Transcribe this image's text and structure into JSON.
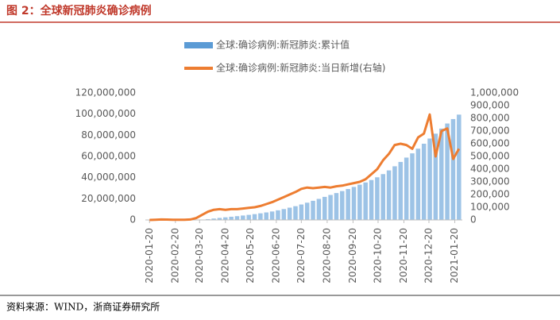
{
  "chart_data": {
    "type": "bar_line",
    "title": "图 2：全球新冠肺炎确诊病例",
    "source": "资料来源：WIND，浙商证券研究所",
    "x": [
      "2020-01-20",
      "2020-01-27",
      "2020-02-03",
      "2020-02-10",
      "2020-02-17",
      "2020-02-24",
      "2020-03-02",
      "2020-03-09",
      "2020-03-16",
      "2020-03-23",
      "2020-03-30",
      "2020-04-06",
      "2020-04-13",
      "2020-04-20",
      "2020-04-27",
      "2020-05-04",
      "2020-05-11",
      "2020-05-18",
      "2020-05-25",
      "2020-06-01",
      "2020-06-08",
      "2020-06-15",
      "2020-06-22",
      "2020-06-29",
      "2020-07-06",
      "2020-07-13",
      "2020-07-20",
      "2020-07-27",
      "2020-08-03",
      "2020-08-10",
      "2020-08-17",
      "2020-08-24",
      "2020-08-31",
      "2020-09-07",
      "2020-09-14",
      "2020-09-21",
      "2020-09-28",
      "2020-10-05",
      "2020-10-12",
      "2020-10-19",
      "2020-10-26",
      "2020-11-02",
      "2020-11-09",
      "2020-11-16",
      "2020-11-23",
      "2020-11-30",
      "2020-12-07",
      "2020-12-14",
      "2020-12-21",
      "2020-12-28",
      "2021-01-04",
      "2021-01-11",
      "2021-01-18",
      "2021-01-25"
    ],
    "xlim": [
      "2020-01-15",
      "2021-01-29"
    ],
    "xticks": [
      "2020-01-20",
      "2020-02-20",
      "2020-03-20",
      "2020-04-20",
      "2020-05-20",
      "2020-06-20",
      "2020-07-20",
      "2020-08-20",
      "2020-09-20",
      "2020-10-20",
      "2020-11-20",
      "2020-12-20",
      "2021-01-20"
    ],
    "series": [
      {
        "name": "全球:确诊病例:新冠肺炎:累计值",
        "color": "#9dc3e6",
        "legend_color": "#5b9bd5",
        "kind": "bar",
        "axis": "y",
        "values": [
          300,
          2900,
          17000,
          43000,
          73000,
          80000,
          90000,
          110000,
          180000,
          380000,
          780000,
          1350000,
          1920000,
          2480000,
          3040000,
          3580000,
          4180000,
          4800000,
          5500000,
          6270000,
          7100000,
          8000000,
          9100000,
          10300000,
          11600000,
          13000000,
          14600000,
          16300000,
          18100000,
          19900000,
          21800000,
          23600000,
          25400000,
          27300000,
          29200000,
          31200000,
          33300000,
          35400000,
          37700000,
          40300000,
          43300000,
          46800000,
          50700000,
          54800000,
          58900000,
          62900000,
          67300000,
          72000000,
          76900000,
          81500000,
          86300000,
          91100000,
          95300000,
          99500000
        ]
      },
      {
        "name": "全球:确诊病例:新冠肺炎:当日新增(右轴)",
        "color": "#ed7d31",
        "kind": "line",
        "axis": "y2",
        "values": [
          100,
          2000,
          3500,
          3000,
          2000,
          1500,
          2000,
          4000,
          15000,
          40000,
          65000,
          80000,
          85000,
          80000,
          85000,
          85000,
          90000,
          95000,
          100000,
          110000,
          125000,
          140000,
          160000,
          180000,
          200000,
          220000,
          245000,
          255000,
          250000,
          255000,
          260000,
          255000,
          265000,
          270000,
          280000,
          290000,
          300000,
          320000,
          360000,
          400000,
          470000,
          520000,
          590000,
          600000,
          590000,
          560000,
          650000,
          680000,
          830000,
          500000,
          700000,
          720000,
          480000,
          560000
        ]
      }
    ],
    "ylim": [
      0,
      120000000
    ],
    "yticks": [
      0,
      {
        "value": 20000000,
        "label": "20,000,000"
      },
      {
        "value": 40000000,
        "label": "40,000,000"
      },
      {
        "value": 60000000,
        "label": "60,000,000"
      },
      {
        "value": 80000000,
        "label": "80,000,000"
      },
      {
        "value": 100000000,
        "label": "100,000,000"
      },
      {
        "value": 120000000,
        "label": "120,000,000"
      }
    ],
    "y2lim": [
      0,
      1000000
    ],
    "y2ticks": [
      0,
      {
        "value": 100000,
        "label": "100,000"
      },
      {
        "value": 200000,
        "label": "200,000"
      },
      {
        "value": 300000,
        "label": "300,000"
      },
      {
        "value": 400000,
        "label": "400,000"
      },
      {
        "value": 500000,
        "label": "500,000"
      },
      {
        "value": 600000,
        "label": "600,000"
      },
      {
        "value": 700000,
        "label": "700,000"
      },
      {
        "value": 800000,
        "label": "800,000"
      },
      {
        "value": 900000,
        "label": "900,000"
      },
      {
        "value": 1000000,
        "label": "1,000,000"
      }
    ]
  }
}
